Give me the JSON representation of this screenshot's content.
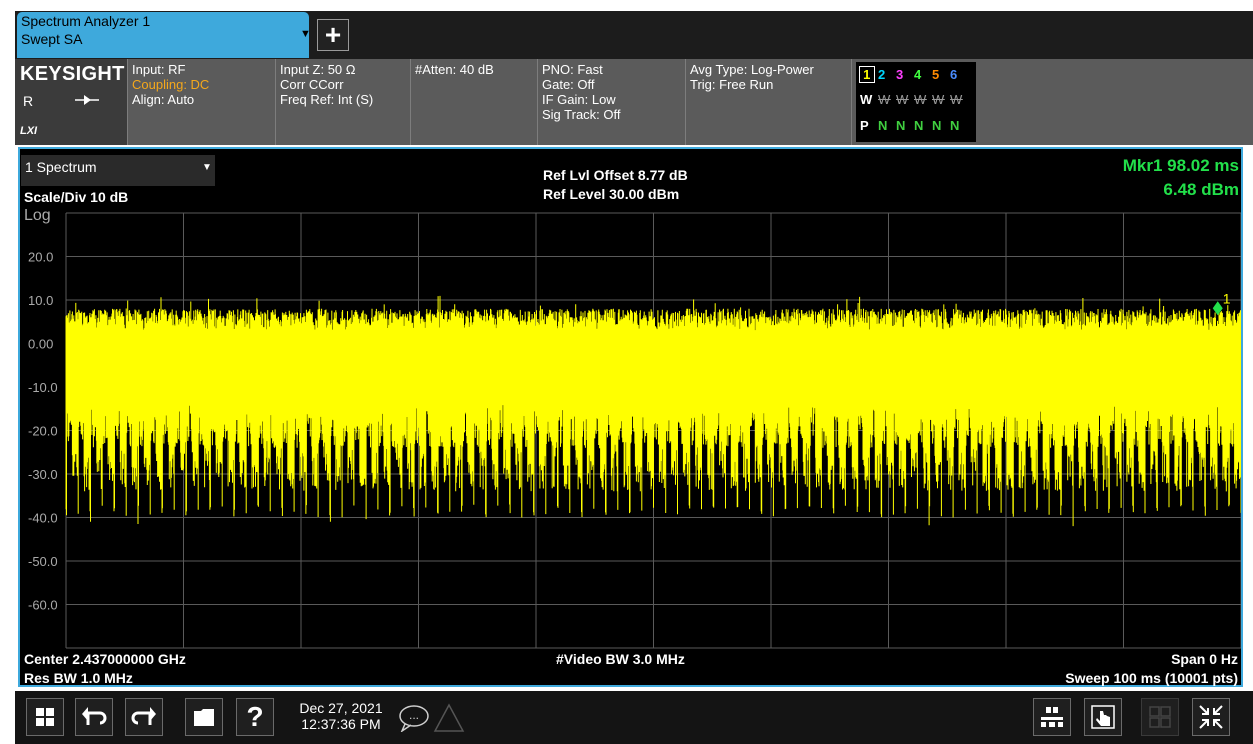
{
  "tabs": [
    {
      "line1": "Spectrum Analyzer 1",
      "line2": "Swept SA"
    }
  ],
  "add_tab_label": "+",
  "brand": {
    "logo": "KEYSIGHT",
    "mode": "R",
    "lxi": "LXI"
  },
  "settings": {
    "col1": [
      "Input: RF",
      "Coupling: DC",
      "Align: Auto"
    ],
    "col2": [
      "Input Z: 50 Ω",
      "Corr CCorr",
      "Freq Ref: Int (S)"
    ],
    "col3": [
      "#Atten: 40 dB"
    ],
    "col4": [
      "PNO: Fast",
      "Gate: Off",
      "IF Gain: Low",
      "Sig Track: Off"
    ],
    "col5": [
      "Avg Type: Log-Power",
      "Trig: Free Run"
    ]
  },
  "traces": {
    "numbers": [
      "1",
      "2",
      "3",
      "4",
      "5",
      "6"
    ],
    "number_colors": [
      "#ffff00",
      "#00d7ff",
      "#ff40ff",
      "#40ff40",
      "#ff8a00",
      "#4a8cff"
    ],
    "types": [
      "W",
      "W",
      "W",
      "W",
      "W",
      "W"
    ],
    "detectors": [
      "P",
      "N",
      "N",
      "N",
      "N",
      "N"
    ]
  },
  "display": {
    "window_name": "1 Spectrum",
    "scale": "Scale/Div 10 dB",
    "scale_type": "Log",
    "ref_offset": "Ref Lvl Offset 8.77 dB",
    "ref_level": "Ref Level 30.00 dBm",
    "marker_line1": "Mkr1  98.02 ms",
    "marker_line2": "6.48 dBm",
    "marker_label": "1",
    "center": "Center 2.437000000 GHz",
    "res_bw": "Res BW 1.0 MHz",
    "video_bw": "#Video BW 3.0 MHz",
    "span": "Span 0 Hz",
    "sweep": "Sweep 100 ms (10001 pts)"
  },
  "chart_data": {
    "type": "line",
    "yticks": [
      "20.0",
      "10.0",
      "0.00",
      "-10.0",
      "-20.0",
      "-30.0",
      "-40.0",
      "-50.0",
      "-60.0"
    ],
    "ylim": [
      -70,
      30
    ],
    "xlim_ms": [
      0,
      100
    ],
    "grid": true,
    "trace_color": "#ffff00",
    "burst_level_dbm": [
      3,
      8
    ],
    "noise_floor_dbm": [
      -40,
      -37
    ],
    "burst_period_ms": 1.02,
    "marker": {
      "x_ms": 98.02,
      "y_dbm": 6.48,
      "color": "#22e04a"
    }
  },
  "taskbar": {
    "date": "Dec 27, 2021",
    "time": "12:37:36 PM",
    "help_label": "?",
    "chat_label": "..."
  }
}
